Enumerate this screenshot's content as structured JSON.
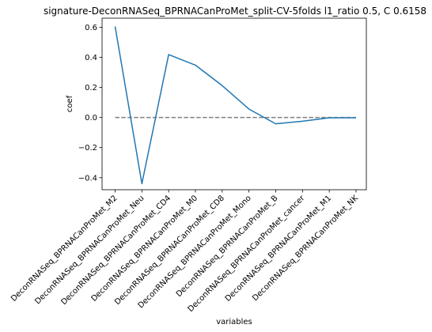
{
  "chart_data": {
    "type": "line",
    "title": "signature-DeconRNASeq_BPRNACanProMet_split-CV-5folds l1_ratio 0.5, C 0.6158",
    "xlabel": "variables",
    "ylabel": "coef",
    "ylim": [
      -0.48,
      0.66
    ],
    "yticks": [
      0.6,
      0.4,
      0.2,
      0.0,
      -0.2,
      -0.4
    ],
    "ytick_labels": [
      "0.6",
      "0.4",
      "0.2",
      "0.0",
      "−0.2",
      "−0.4"
    ],
    "categories": [
      "DeconRNASeq_BPRNACanProMet_M2",
      "DeconRNASeq_BPRNACanProMet_Neu",
      "DeconRNASeq_BPRNACanProMet_CD4",
      "DeconRNASeq_BPRNACanProMet_M0",
      "DeconRNASeq_BPRNACanProMet_CD8",
      "DeconRNASeq_BPRNACanProMet_Mono",
      "DeconRNASeq_BPRNACanProMet_B",
      "DeconRNASeq_BPRNACanProMet_cancer",
      "DeconRNASeq_BPRNACanProMet_M1",
      "DeconRNASeq_BPRNACanProMet_NK"
    ],
    "values": [
      0.605,
      -0.44,
      0.418,
      0.348,
      0.212,
      0.056,
      -0.042,
      -0.025,
      -0.002,
      -0.002
    ],
    "reference_line": {
      "y": 0.0,
      "style": "dashed",
      "color": "#808080"
    },
    "line_color": "#1f77b4",
    "grid": false,
    "legend": "none"
  }
}
